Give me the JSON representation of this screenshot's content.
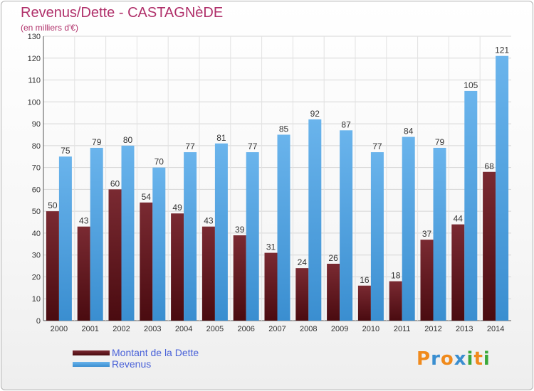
{
  "title": "Revenus/Dette - CASTAGNèDE",
  "subtitle": "(en milliers d'€)",
  "colors": {
    "debt_top": "#7a2a32",
    "debt_bottom": "#4a0b10",
    "revenue_top": "#6ab4ec",
    "revenue_bottom": "#3a8ed0",
    "title": "#b0306a",
    "legend_text": "#4a62d8"
  },
  "chart_data": {
    "type": "bar",
    "categories": [
      "2000",
      "2001",
      "2002",
      "2003",
      "2004",
      "2005",
      "2006",
      "2007",
      "2008",
      "2009",
      "2010",
      "2011",
      "2012",
      "2013",
      "2014"
    ],
    "series": [
      {
        "name": "Montant de la Dette",
        "values": [
          50,
          43,
          60,
          54,
          49,
          43,
          39,
          31,
          24,
          26,
          16,
          18,
          37,
          44,
          68
        ]
      },
      {
        "name": "Revenus",
        "values": [
          75,
          79,
          80,
          70,
          77,
          81,
          77,
          85,
          92,
          87,
          77,
          84,
          79,
          105,
          121
        ]
      }
    ],
    "ylim": [
      0,
      130
    ],
    "yticks": [
      0,
      10,
      20,
      30,
      40,
      50,
      60,
      70,
      80,
      90,
      100,
      110,
      120,
      130
    ],
    "grid": true,
    "legend_position": "bottom-left"
  },
  "legend": [
    {
      "label": "Montant de la Dette"
    },
    {
      "label": "Revenus"
    }
  ],
  "logo": {
    "letters": [
      "P",
      "r",
      "o",
      "x",
      "i",
      "t",
      "i"
    ],
    "colors": [
      "#f08a1c",
      "#3a8ed0",
      "#f08a1c",
      "#3a8ed0",
      "#3aa83a",
      "#f08a1c",
      "#3aa83a"
    ]
  }
}
